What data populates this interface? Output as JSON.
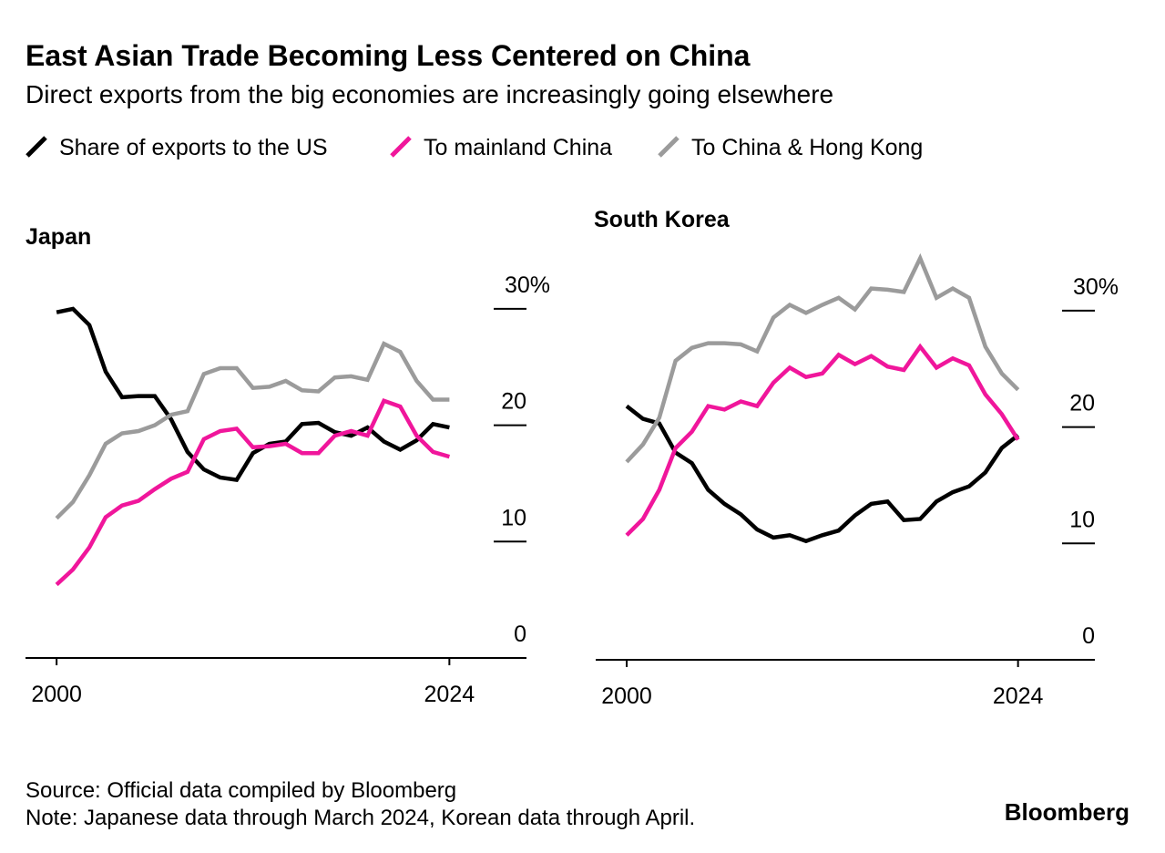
{
  "header": {
    "title": "East Asian Trade Becoming Less Centered on China",
    "subtitle": "Direct exports from the big economies are increasingly going elsewhere"
  },
  "chart_data": [
    {
      "type": "line",
      "title": "Japan",
      "x": [
        2000,
        2001,
        2002,
        2003,
        2004,
        2005,
        2006,
        2007,
        2008,
        2009,
        2010,
        2011,
        2012,
        2013,
        2014,
        2015,
        2016,
        2017,
        2018,
        2019,
        2020,
        2021,
        2022,
        2023,
        2024
      ],
      "series": [
        {
          "name": "Share of exports to the US",
          "color": "#000000",
          "values": [
            29.7,
            30.0,
            28.6,
            24.6,
            22.4,
            22.5,
            22.5,
            20.5,
            17.7,
            16.2,
            15.5,
            15.3,
            17.6,
            18.4,
            18.6,
            20.1,
            20.2,
            19.4,
            19.1,
            19.8,
            18.6,
            17.9,
            18.7,
            20.1,
            19.8
          ]
        },
        {
          "name": "To mainland China",
          "color": "#f0169b",
          "values": [
            6.3,
            7.6,
            9.5,
            12.1,
            13.1,
            13.5,
            14.5,
            15.4,
            16.0,
            18.8,
            19.5,
            19.7,
            18.1,
            18.2,
            18.4,
            17.6,
            17.6,
            19.1,
            19.5,
            19.1,
            22.1,
            21.6,
            19.1,
            17.7,
            17.3
          ]
        },
        {
          "name": "To China & Hong Kong",
          "color": "#9b9b9b",
          "values": [
            12.0,
            13.4,
            15.7,
            18.4,
            19.3,
            19.5,
            20.0,
            20.9,
            21.2,
            24.4,
            24.9,
            24.9,
            23.2,
            23.3,
            23.8,
            23.0,
            22.9,
            24.1,
            24.2,
            23.9,
            27.0,
            26.3,
            23.8,
            22.2,
            22.2
          ]
        }
      ],
      "xlim": [
        1998.1,
        2028.6
      ],
      "xticks": [
        2000,
        2024
      ],
      "ylim": [
        0,
        35
      ],
      "yticks": [
        0,
        10,
        20,
        {
          "value": 30,
          "label": "30%"
        }
      ]
    },
    {
      "type": "line",
      "title": "South Korea",
      "x": [
        2000,
        2001,
        2002,
        2003,
        2004,
        2005,
        2006,
        2007,
        2008,
        2009,
        2010,
        2011,
        2012,
        2013,
        2014,
        2015,
        2016,
        2017,
        2018,
        2019,
        2020,
        2021,
        2022,
        2023,
        2024
      ],
      "series": [
        {
          "color": "#000000",
          "values": [
            21.8,
            20.7,
            20.3,
            17.8,
            16.9,
            14.6,
            13.4,
            12.5,
            11.2,
            10.5,
            10.7,
            10.2,
            10.7,
            11.1,
            12.4,
            13.4,
            13.6,
            12.0,
            12.1,
            13.6,
            14.4,
            14.9,
            16.1,
            18.2,
            19.3
          ]
        },
        {
          "color": "#f0169b",
          "values": [
            10.7,
            12.1,
            14.6,
            18.2,
            19.6,
            21.8,
            21.5,
            22.2,
            21.8,
            23.8,
            25.1,
            24.3,
            24.6,
            26.2,
            25.4,
            26.1,
            25.2,
            24.9,
            26.9,
            25.1,
            25.9,
            25.3,
            22.8,
            21.1,
            18.9
          ]
        },
        {
          "color": "#9b9b9b",
          "values": [
            17.0,
            18.5,
            20.8,
            25.7,
            26.8,
            27.2,
            27.2,
            27.1,
            26.5,
            29.4,
            30.5,
            29.8,
            30.5,
            31.1,
            30.1,
            31.9,
            31.8,
            31.6,
            34.5,
            31.1,
            31.9,
            31.1,
            26.9,
            24.6,
            23.2
          ]
        }
      ],
      "xlim": [
        1998.1,
        2028.6
      ],
      "xticks": [
        2000,
        2024
      ],
      "ylim": [
        0,
        35
      ],
      "yticks": [
        0,
        10,
        20,
        {
          "value": 30,
          "label": "30%"
        }
      ]
    }
  ],
  "footer": {
    "source": "Source: Official data compiled by Bloomberg",
    "note": "Note: Japanese data through March 2024, Korean data through April."
  },
  "logo": "Bloomberg"
}
